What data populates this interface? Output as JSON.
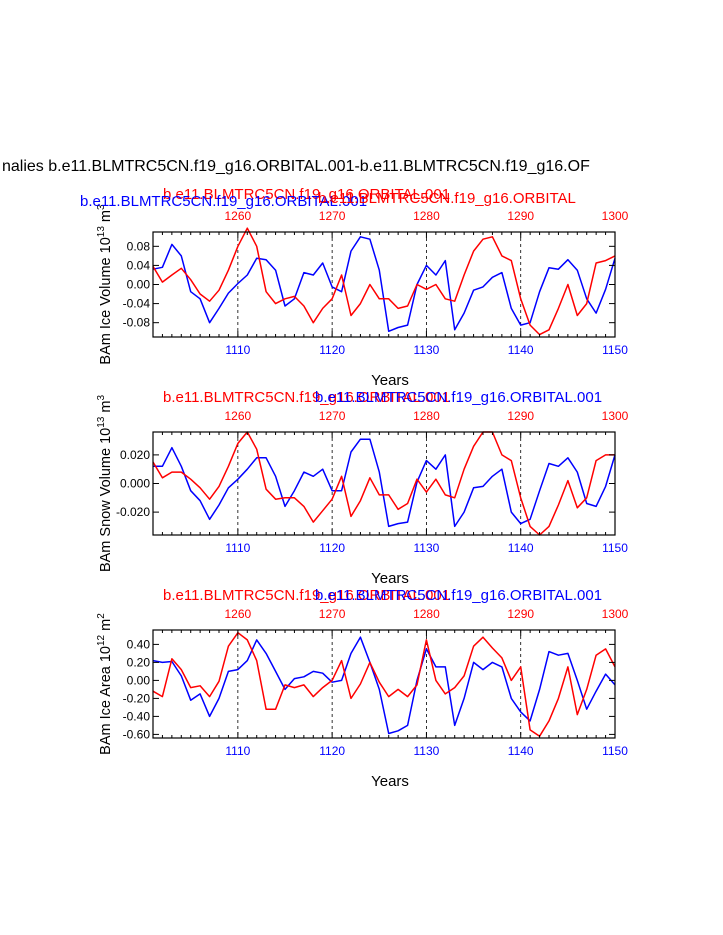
{
  "figure": {
    "main_title": "nalies b.e11.BLMTRC5CN.f19_g16.ORBITAL.001-b.e11.BLMTRC5CN.f19_g16.OF",
    "colors": {
      "blue": "#0000ff",
      "red": "#ff0000",
      "black": "#000000"
    }
  },
  "chart_data": [
    {
      "type": "line",
      "ylabel_base": "BAm Ice Volume 10",
      "ylabel_exp": "13",
      "ylabel_unit": " m",
      "ylabel_unit_exp": "3",
      "xlabel": "Years",
      "top_title_red": "b.e11.BLMTRC5CN.f19_g16.ORBITAL.001",
      "top_title_blue": "b.e11.BLMTRC5CN.f19_g16.ORBITAL.001",
      "top_title_red2": "b.e11.BLMTRC5CN.f19_g16.ORBITAL",
      "xlim_bottom": [
        1101,
        1150
      ],
      "xlim_top": [
        1251,
        1300
      ],
      "bottom_ticks": [
        "1110",
        "1120",
        "1130",
        "1140",
        "1150"
      ],
      "top_ticks": [
        "1260",
        "1270",
        "1280",
        "1290",
        "1300"
      ],
      "ylim": [
        -0.11,
        0.11
      ],
      "yticks": [
        {
          "v": 0.08,
          "label": "0.08"
        },
        {
          "v": 0.04,
          "label": "0.04"
        },
        {
          "v": 0.0,
          "label": "0.00"
        },
        {
          "v": -0.04,
          "label": "-0.04"
        },
        {
          "v": -0.08,
          "label": "-0.08"
        }
      ],
      "series": [
        {
          "color": "blue",
          "x_start": 1101,
          "values": [
            0.032,
            0.036,
            0.084,
            0.06,
            -0.015,
            -0.03,
            -0.08,
            -0.05,
            -0.018,
            0.002,
            0.02,
            0.055,
            0.052,
            0.03,
            -0.045,
            -0.03,
            0.025,
            0.02,
            0.045,
            -0.005,
            -0.015,
            0.07,
            0.1,
            0.095,
            0.03,
            -0.098,
            -0.09,
            -0.085,
            0.0,
            0.04,
            0.02,
            0.05,
            -0.095,
            -0.06,
            -0.012,
            -0.005,
            0.015,
            0.025,
            -0.05,
            -0.085,
            -0.08,
            -0.015,
            0.035,
            0.032,
            0.052,
            0.03,
            -0.03,
            -0.06,
            -0.01,
            0.055
          ]
        },
        {
          "color": "red",
          "x_start": 1101,
          "values": [
            0.038,
            0.005,
            0.02,
            0.034,
            0.01,
            -0.02,
            -0.035,
            -0.012,
            0.03,
            0.08,
            0.118,
            0.08,
            -0.015,
            -0.04,
            -0.03,
            -0.025,
            -0.045,
            -0.08,
            -0.05,
            -0.03,
            0.02,
            -0.065,
            -0.04,
            0.0,
            -0.03,
            -0.03,
            -0.05,
            -0.045,
            0.0,
            -0.01,
            0.0,
            -0.03,
            -0.035,
            0.02,
            0.07,
            0.095,
            0.1,
            0.06,
            0.05,
            -0.03,
            -0.085,
            -0.105,
            -0.095,
            -0.05,
            0.0,
            -0.065,
            -0.04,
            0.045,
            0.05,
            0.06
          ]
        }
      ]
    },
    {
      "type": "line",
      "ylabel_base": "BAm Snow Volume 10",
      "ylabel_exp": "13",
      "ylabel_unit": " m",
      "ylabel_unit_exp": "3",
      "xlabel": "Years",
      "top_title_red": "b.e11.BLMTRC5CN.f19_g16.ORBITAL.001",
      "top_title_blue": "b.e11.BLMTRC5CN.f19_g16.ORBITAL.001",
      "xlim_bottom": [
        1101,
        1150
      ],
      "xlim_top": [
        1251,
        1300
      ],
      "bottom_ticks": [
        "1110",
        "1120",
        "1130",
        "1140",
        "1150"
      ],
      "top_ticks": [
        "1260",
        "1270",
        "1280",
        "1290",
        "1300"
      ],
      "ylim": [
        -0.036,
        0.036
      ],
      "yticks": [
        {
          "v": 0.02,
          "label": "0.020"
        },
        {
          "v": 0.0,
          "label": "0.000"
        },
        {
          "v": -0.02,
          "label": "-0.020"
        }
      ],
      "series": [
        {
          "color": "blue",
          "x_start": 1101,
          "values": [
            0.012,
            0.012,
            0.025,
            0.012,
            -0.005,
            -0.012,
            -0.025,
            -0.015,
            -0.003,
            0.003,
            0.01,
            0.018,
            0.018,
            0.005,
            -0.016,
            -0.005,
            0.008,
            0.005,
            0.01,
            -0.005,
            -0.005,
            0.022,
            0.031,
            0.031,
            0.008,
            -0.03,
            -0.028,
            -0.027,
            0.001,
            0.016,
            0.01,
            0.02,
            -0.03,
            -0.02,
            -0.003,
            -0.002,
            0.005,
            0.01,
            -0.02,
            -0.028,
            -0.025,
            -0.005,
            0.014,
            0.012,
            0.018,
            0.008,
            -0.014,
            -0.016,
            -0.002,
            0.02
          ]
        },
        {
          "color": "red",
          "x_start": 1101,
          "values": [
            0.015,
            0.004,
            0.008,
            0.008,
            0.003,
            -0.003,
            -0.011,
            -0.002,
            0.012,
            0.028,
            0.036,
            0.024,
            -0.004,
            -0.011,
            -0.01,
            -0.01,
            -0.016,
            -0.027,
            -0.019,
            -0.011,
            0.005,
            -0.023,
            -0.012,
            0.004,
            -0.008,
            -0.008,
            -0.018,
            -0.014,
            0.003,
            -0.006,
            0.003,
            -0.008,
            -0.01,
            0.01,
            0.026,
            0.036,
            0.036,
            0.02,
            0.016,
            -0.01,
            -0.03,
            -0.036,
            -0.03,
            -0.015,
            0.002,
            -0.017,
            -0.01,
            0.016,
            0.02,
            0.02
          ]
        }
      ]
    },
    {
      "type": "line",
      "ylabel_base": "BAm Ice Area 10",
      "ylabel_exp": "12",
      "ylabel_unit": " m",
      "ylabel_unit_exp": "2",
      "xlabel": "Years",
      "top_title_red": "b.e11.BLMTRC5CN.f19_g16.ORBITAL.001",
      "top_title_blue": "b.e11.BLMTRC5CN.f19_g16.ORBITAL.001",
      "xlim_bottom": [
        1101,
        1150
      ],
      "xlim_top": [
        1251,
        1300
      ],
      "bottom_ticks": [
        "1110",
        "1120",
        "1130",
        "1140",
        "1150"
      ],
      "top_ticks": [
        "1260",
        "1270",
        "1280",
        "1290",
        "1300"
      ],
      "ylim": [
        -0.64,
        0.56
      ],
      "yticks": [
        {
          "v": 0.4,
          "label": "0.40"
        },
        {
          "v": 0.2,
          "label": "0.20"
        },
        {
          "v": 0.0,
          "label": "0.00"
        },
        {
          "v": -0.2,
          "label": "-0.20"
        },
        {
          "v": -0.4,
          "label": "-0.40"
        },
        {
          "v": -0.6,
          "label": "-0.60"
        }
      ],
      "series": [
        {
          "color": "blue",
          "x_start": 1101,
          "values": [
            0.22,
            0.2,
            0.21,
            0.05,
            -0.22,
            -0.15,
            -0.4,
            -0.2,
            0.1,
            0.12,
            0.22,
            0.45,
            0.3,
            0.1,
            -0.1,
            0.02,
            0.04,
            0.1,
            0.08,
            -0.02,
            0.0,
            0.3,
            0.48,
            0.2,
            -0.1,
            -0.59,
            -0.56,
            -0.5,
            0.0,
            0.35,
            0.15,
            0.15,
            -0.5,
            -0.2,
            0.2,
            0.12,
            0.2,
            0.15,
            -0.2,
            -0.35,
            -0.45,
            -0.1,
            0.32,
            0.28,
            0.3,
            0.0,
            -0.32,
            -0.12,
            0.07,
            -0.05
          ]
        },
        {
          "color": "red",
          "x_start": 1101,
          "values": [
            -0.12,
            -0.18,
            0.24,
            0.12,
            -0.08,
            -0.06,
            -0.18,
            -0.01,
            0.38,
            0.53,
            0.45,
            0.22,
            -0.32,
            -0.32,
            -0.05,
            -0.08,
            -0.05,
            -0.18,
            -0.08,
            0.0,
            0.22,
            -0.2,
            -0.04,
            0.2,
            -0.02,
            -0.18,
            -0.1,
            -0.18,
            -0.05,
            0.45,
            0.0,
            -0.15,
            -0.08,
            0.05,
            0.38,
            0.48,
            0.36,
            0.25,
            0.0,
            0.15,
            -0.55,
            -0.62,
            -0.45,
            -0.2,
            0.15,
            -0.38,
            -0.1,
            0.28,
            0.35,
            0.15
          ]
        }
      ]
    }
  ]
}
